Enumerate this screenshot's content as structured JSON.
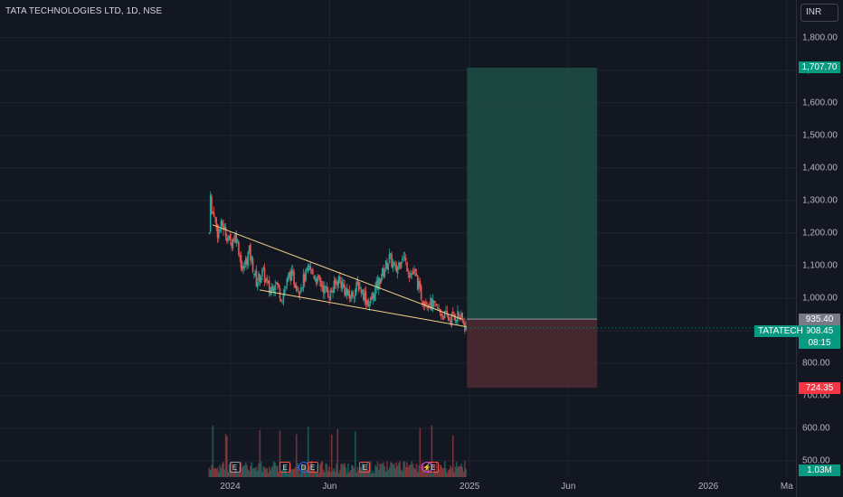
{
  "header": {
    "title": "TATA TECHNOLOGIES LTD, 1D, NSE",
    "currency": "INR"
  },
  "colors": {
    "background": "#131722",
    "up": "#26a69a",
    "down": "#ef5350",
    "trendline": "#f5d38a",
    "target_zone": "#1d4d44",
    "stop_zone": "#4d2a31"
  },
  "chart_data": {
    "type": "candlestick",
    "symbol": "TATATECH",
    "title": "TATA TECHNOLOGIES LTD, 1D, NSE",
    "y_ticks": [
      "1,800.00",
      "1,700.00",
      "1,600.00",
      "1,500.00",
      "1,400.00",
      "1,300.00",
      "1,200.00",
      "1,100.00",
      "1,000.00",
      "900.00",
      "800.00",
      "700.00",
      "600.00",
      "500.00"
    ],
    "y_tick_values": [
      1800,
      1700,
      1600,
      1500,
      1400,
      1300,
      1200,
      1100,
      1000,
      900,
      800,
      700,
      600,
      500
    ],
    "ylim": [
      450,
      1860
    ],
    "x_labels": [
      "2024",
      "Jun",
      "2025",
      "Jun",
      "2026",
      "Ma"
    ],
    "x_label_dates": [
      "2024-01-01",
      "2024-06-01",
      "2025-01-01",
      "2025-06-01",
      "2026-01-01",
      "2026-05-01"
    ],
    "xlim": [
      "2023-01-14",
      "2026-05-15"
    ],
    "price_series": [
      [
        "2023-11-30",
        1200
      ],
      [
        "2023-12-01",
        1390
      ],
      [
        "2023-12-03",
        1250
      ],
      [
        "2023-12-07",
        1270
      ],
      [
        "2023-12-12",
        1200
      ],
      [
        "2023-12-20",
        1225
      ],
      [
        "2024-01-01",
        1170
      ],
      [
        "2024-01-10",
        1195
      ],
      [
        "2024-01-20",
        1080
      ],
      [
        "2024-01-30",
        1145
      ],
      [
        "2024-02-10",
        1050
      ],
      [
        "2024-02-20",
        1080
      ],
      [
        "2024-03-01",
        1020
      ],
      [
        "2024-03-10",
        1055
      ],
      [
        "2024-03-20",
        1000
      ],
      [
        "2024-04-01",
        1075
      ],
      [
        "2024-04-15",
        1030
      ],
      [
        "2024-05-01",
        1090
      ],
      [
        "2024-05-15",
        1050
      ],
      [
        "2024-06-01",
        1010
      ],
      [
        "2024-06-15",
        1060
      ],
      [
        "2024-07-01",
        1000
      ],
      [
        "2024-07-15",
        1040
      ],
      [
        "2024-08-01",
        980
      ],
      [
        "2024-08-15",
        1050
      ],
      [
        "2024-09-01",
        1125
      ],
      [
        "2024-09-10",
        1080
      ],
      [
        "2024-09-20",
        1135
      ],
      [
        "2024-10-01",
        1080
      ],
      [
        "2024-10-10",
        1070
      ],
      [
        "2024-10-20",
        1000
      ],
      [
        "2024-11-01",
        985
      ],
      [
        "2024-11-15",
        960
      ],
      [
        "2024-12-01",
        935
      ],
      [
        "2024-12-15",
        950
      ],
      [
        "2024-12-27",
        905
      ]
    ],
    "trendlines": [
      {
        "from": [
          "2023-12-05",
          1225
        ],
        "to": [
          "2024-12-20",
          935
        ]
      },
      {
        "from": [
          "2024-02-15",
          1025
        ],
        "to": [
          "2024-12-27",
          912
        ]
      }
    ],
    "position": {
      "entry": 935.4,
      "target": 1707.7,
      "stop": 724.35,
      "start": "2024-12-28",
      "end": "2025-07-15",
      "entry_label": "935.40",
      "target_label": "1,707.70",
      "stop_label": "724.35"
    },
    "last_price": {
      "symbol": "TATATECH",
      "price_label": "908.45",
      "countdown": "08:15",
      "value": 908.45
    },
    "volume_label": "1.03M",
    "events": [
      "E",
      "E",
      "D",
      "E",
      "E",
      "⚡",
      "E"
    ],
    "event_dates": [
      "2024-01-08",
      "2024-03-25",
      "2024-04-22",
      "2024-05-06",
      "2024-07-25",
      "2024-10-28",
      "2024-11-06"
    ]
  }
}
